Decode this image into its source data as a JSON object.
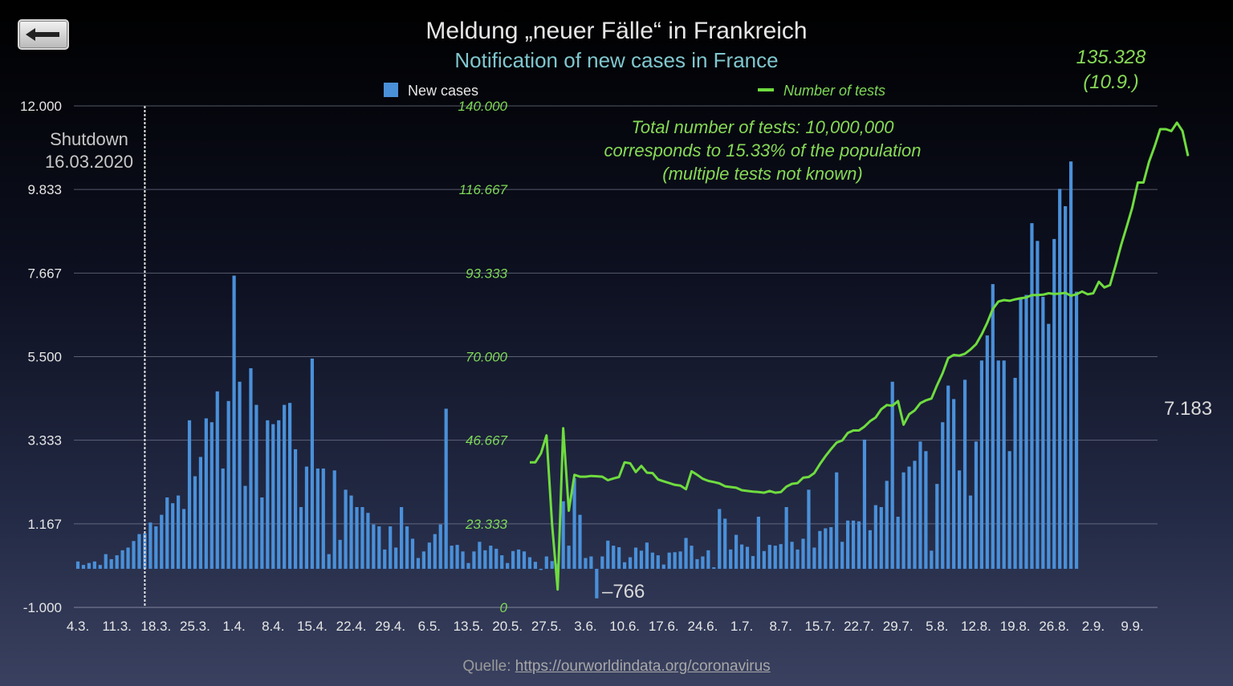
{
  "title": "Meldung „neuer Fälle“ in Frankreich",
  "subtitle": "Notification of new cases in France",
  "nav": {
    "back_icon": "back-arrow-icon"
  },
  "legend": {
    "bars": "New cases",
    "line": "Number of tests"
  },
  "annotation": {
    "line1": "Total number of tests: 10,000,000",
    "line2": "corresponds to 15.33% of the population",
    "line3": "(multiple tests not known)"
  },
  "shutdown": {
    "line1": "Shutdown",
    "line2": "16.03.2020"
  },
  "peak_label": {
    "value": "135.328",
    "date": "(10.9.)"
  },
  "last_value_label": "7.183",
  "negative_value_label": "–766",
  "source": {
    "prefix": "Quelle: ",
    "link": "https://ourworldindata.org/coronavirus"
  },
  "colors": {
    "bars": "#4a90d9",
    "line": "#6fdc3f",
    "grid": "#8a8fa3"
  },
  "chart_data": {
    "type": "bar",
    "x_start": "4.3.",
    "x_tick_labels": [
      "4.3.",
      "11.3.",
      "18.3.",
      "25.3.",
      "1.4.",
      "8.4.",
      "15.4.",
      "22.4.",
      "29.4.",
      "6.5.",
      "13.5.",
      "20.5.",
      "27.5.",
      "3.6.",
      "10.6.",
      "17.6.",
      "24.6.",
      "1.7.",
      "8.7.",
      "15.7.",
      "22.7.",
      "29.7.",
      "5.8.",
      "12.8.",
      "19.8.",
      "26.8.",
      "2.9.",
      "9.9."
    ],
    "left_axis": {
      "ticks": [
        "-1.000",
        "1.167",
        "3.333",
        "5.500",
        "7.667",
        "9.833",
        "12.000"
      ],
      "range": [
        -1000,
        12000
      ]
    },
    "right_axis": {
      "ticks": [
        "0",
        "23.333",
        "46.667",
        "70.000",
        "93.333",
        "116.667",
        "140.000"
      ],
      "range": [
        0,
        140000
      ]
    },
    "shutdown_marker_date": "16.3.",
    "series": [
      {
        "name": "New cases",
        "kind": "bar",
        "axis": "left",
        "values": [
          190,
          100,
          150,
          190,
          100,
          380,
          250,
          350,
          480,
          550,
          720,
          900,
          920,
          1200,
          1100,
          1400,
          1850,
          1700,
          1900,
          1550,
          3850,
          2400,
          2900,
          3900,
          3800,
          4600,
          2600,
          4350,
          7600,
          4850,
          2150,
          5200,
          4250,
          1850,
          3850,
          3750,
          3850,
          4250,
          4300,
          3100,
          1600,
          2650,
          5450,
          2600,
          2600,
          380,
          2550,
          750,
          2050,
          1900,
          1600,
          1600,
          1450,
          1150,
          1100,
          500,
          1100,
          550,
          1600,
          1100,
          780,
          280,
          450,
          680,
          900,
          1150,
          4150,
          600,
          620,
          450,
          150,
          450,
          700,
          480,
          600,
          520,
          350,
          150,
          460,
          500,
          450,
          300,
          180,
          -30,
          320,
          200,
          130,
          1750,
          600,
          2350,
          1400,
          280,
          320,
          -766,
          320,
          730,
          600,
          560,
          170,
          300,
          550,
          470,
          680,
          420,
          350,
          110,
          420,
          430,
          450,
          800,
          600,
          250,
          320,
          480,
          40,
          1550,
          1300,
          500,
          880,
          630,
          570,
          330,
          1350,
          460,
          620,
          600,
          640,
          1600,
          700,
          500,
          780,
          2050,
          550,
          980,
          1050,
          1080,
          2500,
          700,
          1250,
          1250,
          1230,
          3350,
          1000,
          1650,
          1600,
          2280,
          4850,
          1350,
          2500,
          2650,
          2800,
          3300,
          3050,
          470,
          2200,
          3800,
          4750,
          4400,
          2550,
          4900,
          1900,
          3300,
          5400,
          6050,
          7380,
          5400,
          5400,
          3050,
          4950,
          7000,
          7100,
          8960,
          8500,
          7050,
          6350,
          8550,
          9850,
          9400,
          10560,
          7183
        ]
      },
      {
        "name": "Number of tests",
        "kind": "line",
        "axis": "right",
        "start_date": "24.5.",
        "values": [
          40500,
          40500,
          43000,
          48000,
          23000,
          5000,
          50000,
          27000,
          37000,
          36500,
          36500,
          36700,
          36600,
          36500,
          35500,
          36000,
          36400,
          40500,
          40200,
          37800,
          39500,
          37600,
          37500,
          35700,
          35200,
          34700,
          34200,
          34000,
          33000,
          38000,
          37000,
          35900,
          35300,
          35000,
          34600,
          33800,
          33600,
          33400,
          32700,
          32500,
          32300,
          32200,
          32000,
          32500,
          32000,
          32200,
          33700,
          34500,
          34700,
          36200,
          36400,
          37500,
          40000,
          42200,
          44200,
          46000,
          46600,
          48700,
          49400,
          49400,
          50500,
          52000,
          53000,
          55300,
          56500,
          56300,
          57600,
          51000,
          53900,
          55000,
          57000,
          57800,
          58300,
          62000,
          65400,
          69600,
          70500,
          70300,
          70800,
          72000,
          73500,
          76200,
          79500,
          83300,
          85400,
          85800,
          85600,
          86000,
          86300,
          86500,
          87200,
          87200,
          87300,
          87700,
          87500,
          87600,
          87800,
          87000,
          87400,
          88200,
          87400,
          87700,
          90900,
          89300,
          90000,
          95400,
          101200,
          106300,
          111600,
          118600,
          118600,
          124400,
          128700,
          133500,
          133500,
          133000,
          135328,
          133000,
          126000
        ]
      }
    ],
    "grid": true,
    "legend_position": "top"
  }
}
